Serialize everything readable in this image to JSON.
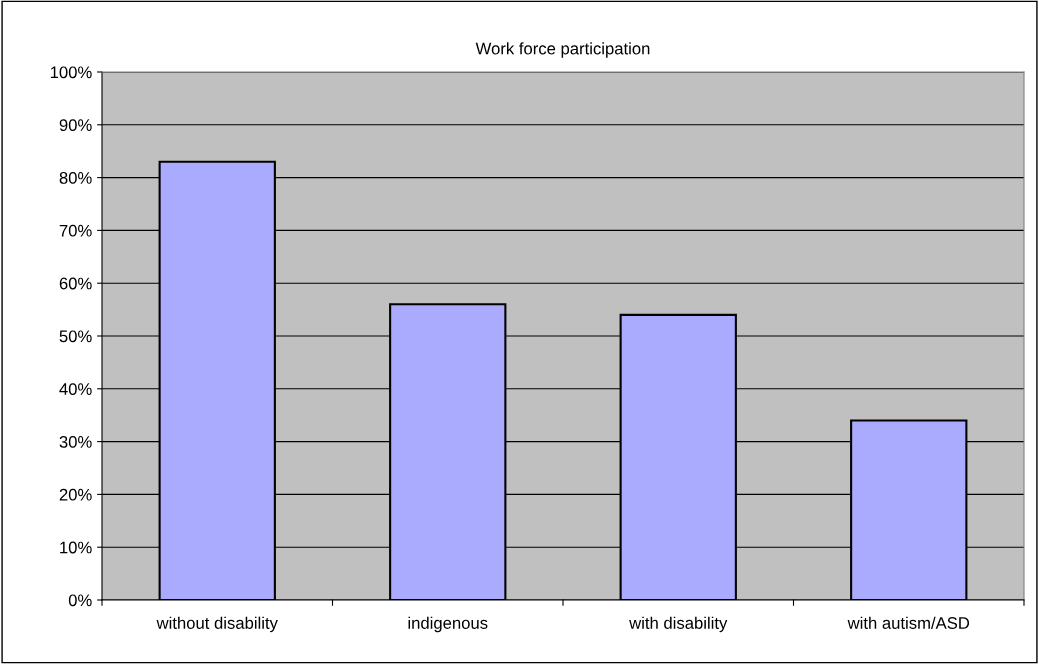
{
  "chart_data": {
    "type": "bar",
    "title": "Work force participation",
    "categories": [
      "without disability",
      "indigenous",
      "with disability",
      "with autism/ASD"
    ],
    "values": [
      83,
      56,
      54,
      34
    ],
    "color": "#aaaaff",
    "ylim": [
      0,
      100
    ],
    "yticks": [
      {
        "value": 0,
        "label": "0%"
      },
      {
        "value": 10,
        "label": "10%"
      },
      {
        "value": 20,
        "label": "20%"
      },
      {
        "value": 30,
        "label": "30%"
      },
      {
        "value": 40,
        "label": "40%"
      },
      {
        "value": 50,
        "label": "50%"
      },
      {
        "value": 60,
        "label": "60%"
      },
      {
        "value": 70,
        "label": "70%"
      },
      {
        "value": 80,
        "label": "80%"
      },
      {
        "value": 90,
        "label": "90%"
      },
      {
        "value": 100,
        "label": "100%"
      }
    ],
    "grid": "y",
    "legend": false
  }
}
